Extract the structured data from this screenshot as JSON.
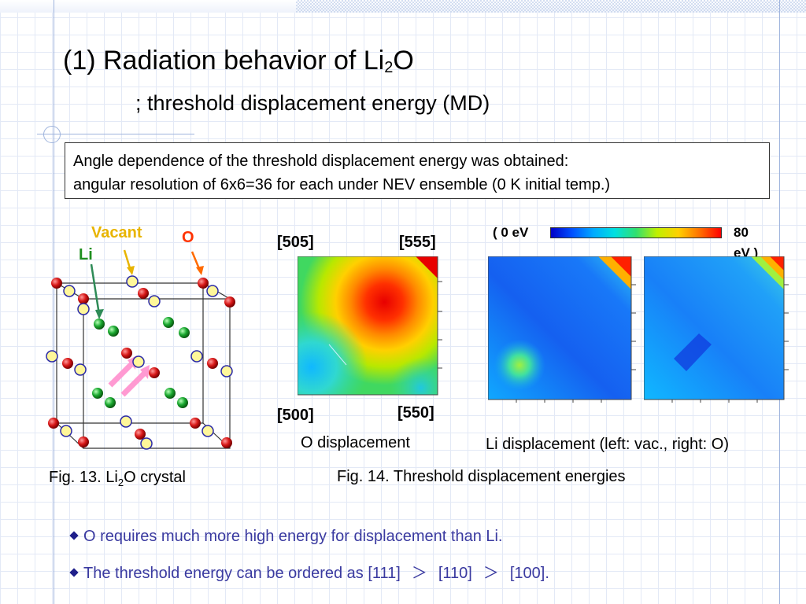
{
  "title": {
    "prefix": "(1) Radiation behavior of Li",
    "sub": "2",
    "suffix": "O",
    "subtitle": "; threshold displacement energy (MD)"
  },
  "info_box": {
    "line1": "Angle dependence of the threshold displacement energy was obtained:",
    "line2": "angular resolution of 6x6=36 for each under NEV ensemble (0 K initial temp.)"
  },
  "crystal": {
    "label_vacant": "Vacant",
    "label_o": "O",
    "label_li": "Li",
    "caption_prefix": "Fig. 13.   Li",
    "caption_sub": "2",
    "caption_suffix": "O crystal",
    "colors": {
      "oxygen": "#d81818",
      "lithium": "#1aa830",
      "vacant": "#fff79a",
      "vacant_edge": "#2a2aa8",
      "arrow": "#ff9ad2"
    }
  },
  "o_map": {
    "corner_tl": "[505]",
    "corner_tr": "[555]",
    "corner_bl": "[500]",
    "corner_br": "[550]",
    "caption": "O displacement"
  },
  "li_map": {
    "scale_min": "( 0 eV",
    "scale_max_a": "80",
    "scale_max_b": "eV )",
    "caption": "Li displacement (left: vac., right: O)"
  },
  "figure14_caption": "Fig. 14.   Threshold displacement energies",
  "bullets": [
    {
      "text": "O requires much more high energy for displacement than Li."
    },
    {
      "text": "The threshold energy can be ordered as  [111]",
      "sym1": "＞",
      "mid": "[110]",
      "sym2": "＞",
      "end": "[100]."
    }
  ]
}
